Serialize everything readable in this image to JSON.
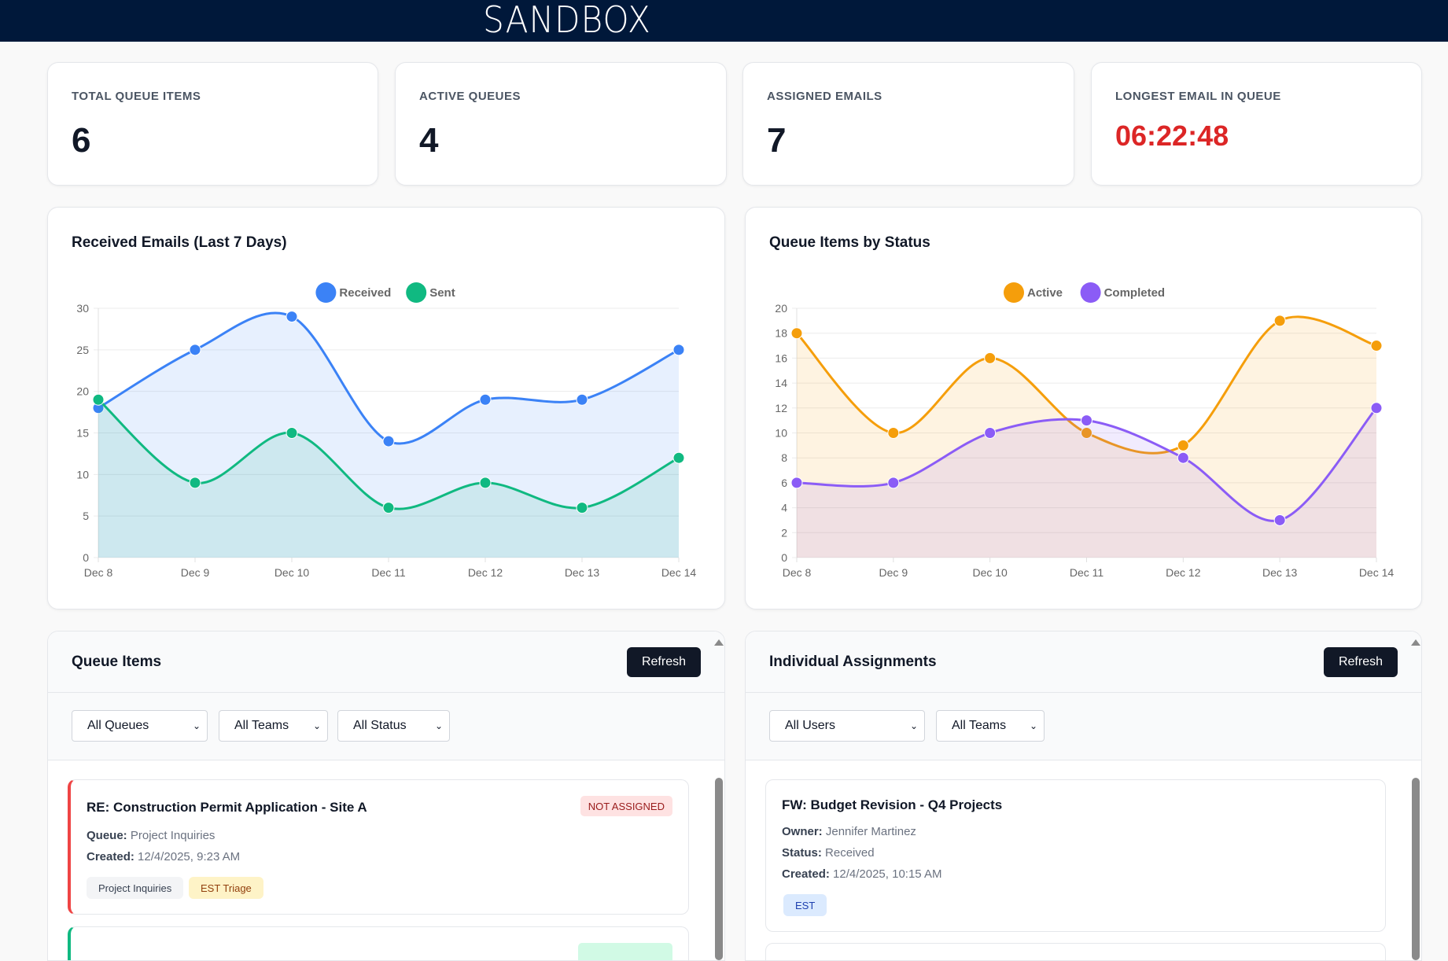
{
  "header": {
    "title": "SANDBOX"
  },
  "stats": [
    {
      "label": "TOTAL QUEUE ITEMS",
      "value": "6"
    },
    {
      "label": "ACTIVE QUEUES",
      "value": "4"
    },
    {
      "label": "ASSIGNED EMAILS",
      "value": "7"
    },
    {
      "label": "LONGEST EMAIL IN QUEUE",
      "value": "06:22:48"
    }
  ],
  "chart_data": [
    {
      "type": "line",
      "title": "Received Emails (Last 7 Days)",
      "categories": [
        "Dec 8",
        "Dec 9",
        "Dec 10",
        "Dec 11",
        "Dec 12",
        "Dec 13",
        "Dec 14"
      ],
      "series": [
        {
          "name": "Received",
          "values": [
            18,
            25,
            29,
            14,
            19,
            19,
            25
          ],
          "color": "#3b82f6"
        },
        {
          "name": "Sent",
          "values": [
            19,
            9,
            15,
            6,
            9,
            6,
            12
          ],
          "color": "#10b981"
        }
      ],
      "ylim": [
        0,
        30
      ],
      "yticks": [
        0,
        5,
        10,
        15,
        20,
        25,
        30
      ],
      "legend": "top",
      "fill": true,
      "grid": true
    },
    {
      "type": "line",
      "title": "Queue Items by Status",
      "categories": [
        "Dec 8",
        "Dec 9",
        "Dec 10",
        "Dec 11",
        "Dec 12",
        "Dec 13",
        "Dec 14"
      ],
      "series": [
        {
          "name": "Active",
          "values": [
            18,
            10,
            16,
            10,
            9,
            19,
            17
          ],
          "color": "#f59e0b"
        },
        {
          "name": "Completed",
          "values": [
            6,
            6,
            10,
            11,
            8,
            3,
            12
          ],
          "color": "#8b5cf6"
        }
      ],
      "ylim": [
        0,
        20
      ],
      "yticks": [
        0,
        2,
        4,
        6,
        8,
        10,
        12,
        14,
        16,
        18,
        20
      ],
      "legend": "top",
      "fill": true,
      "grid": true
    }
  ],
  "queue": {
    "title": "Queue Items",
    "refresh": "Refresh",
    "filters": [
      "All Queues",
      "All Teams",
      "All Status"
    ],
    "items": [
      {
        "title": "RE: Construction Permit Application - Site A",
        "status": "NOT ASSIGNED",
        "queue_label": "Queue:",
        "queue": "Project Inquiries",
        "created_label": "Created:",
        "created": "12/4/2025, 9:23 AM",
        "tags": [
          "Project Inquiries",
          "EST Triage"
        ],
        "accent": "#ef4444"
      }
    ]
  },
  "assign": {
    "title": "Individual Assignments",
    "refresh": "Refresh",
    "filters": [
      "All Users",
      "All Teams"
    ],
    "items": [
      {
        "title": "FW: Budget Revision - Q4 Projects",
        "owner_label": "Owner:",
        "owner": "Jennifer Martinez",
        "status_label": "Status:",
        "status": "Received",
        "created_label": "Created:",
        "created": "12/4/2025, 10:15 AM",
        "tags": [
          "EST"
        ]
      }
    ]
  }
}
